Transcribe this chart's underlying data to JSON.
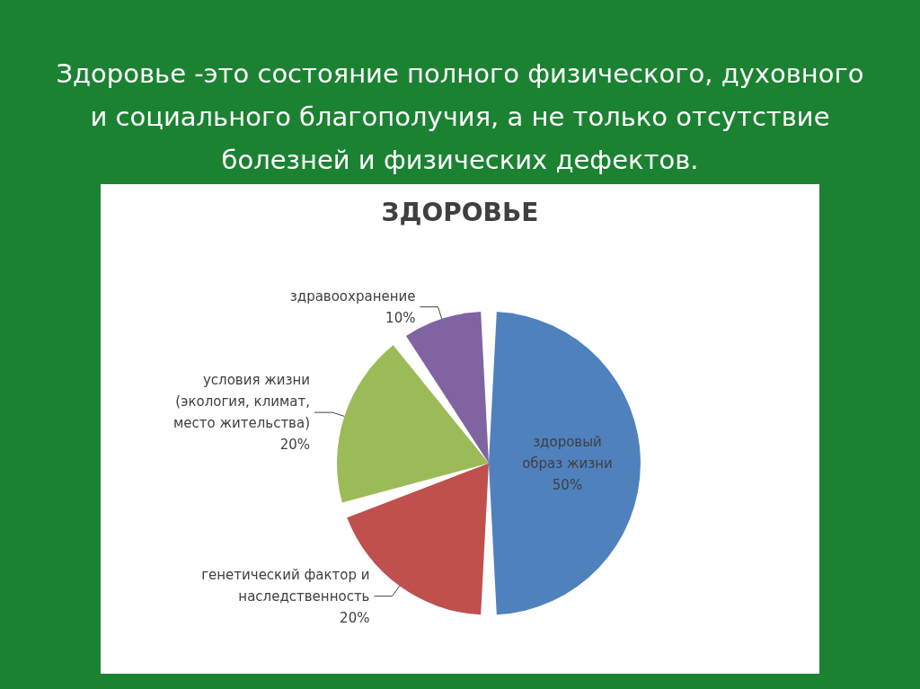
{
  "chart_data": {
    "type": "pie",
    "title": "Здоровье -это состояние полного физического, духовного и социального благополучия, а не только отсутствие болезней и физических дефектов.",
    "subtitle": "ЗДОРОВЬЕ",
    "categories": [
      "здоровый образ жизни",
      "генетический фактор и наследственность",
      "условия жизни (экология, климат, место жительства)",
      "здравоохранение"
    ],
    "values": [
      50,
      20,
      20,
      10
    ],
    "value_labels": [
      "50%",
      "20%",
      "20%",
      "10%"
    ],
    "colors": [
      "#4f81bd",
      "#c0504d",
      "#9bbb59",
      "#8064a2"
    ],
    "legend": false
  }
}
